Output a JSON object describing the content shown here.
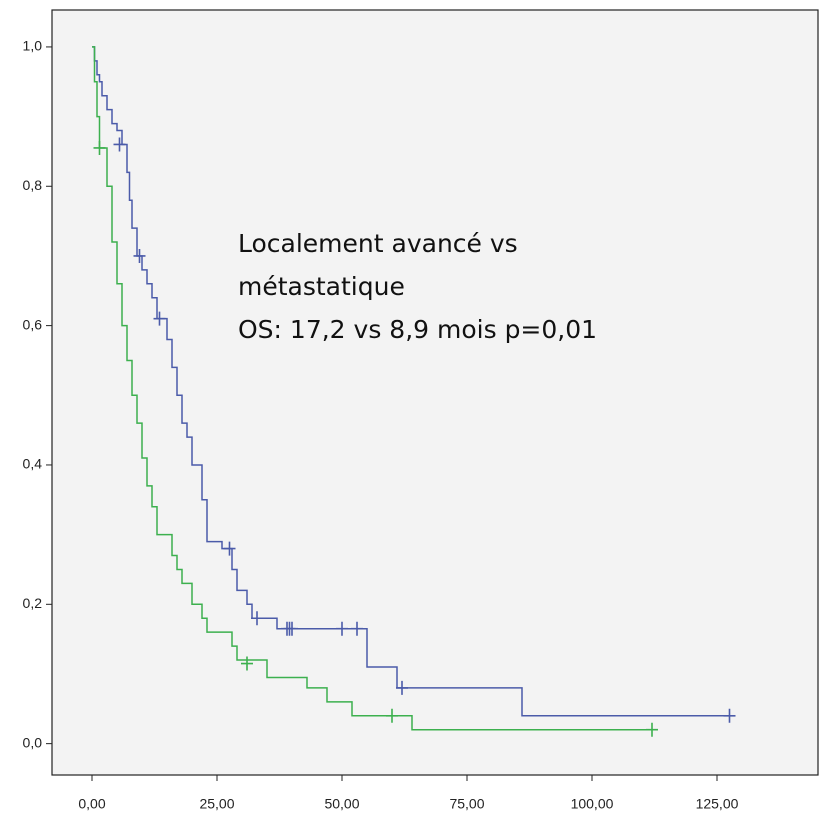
{
  "chart_data": {
    "type": "step",
    "annotation": [
      "Localement avancé vs",
      "métastatique",
      "OS: 17,2 vs 8,9 mois  p=0,01"
    ],
    "xlim": [
      -8,
      145.2
    ],
    "ylim": [
      -0.045,
      1.053
    ],
    "xticks": [
      {
        "value": 0,
        "label": "0,00"
      },
      {
        "value": 25,
        "label": "25,00"
      },
      {
        "value": 50,
        "label": "50,00"
      },
      {
        "value": 75,
        "label": "75,00"
      },
      {
        "value": 100,
        "label": "100,00"
      },
      {
        "value": 125,
        "label": "125,00"
      }
    ],
    "yticks": [
      {
        "value": 0,
        "label": "0,0"
      },
      {
        "value": 0.2,
        "label": "0,2"
      },
      {
        "value": 0.4,
        "label": "0,4"
      },
      {
        "value": 0.6,
        "label": "0,6"
      },
      {
        "value": 0.8,
        "label": "0,8"
      },
      {
        "value": 1.0,
        "label": "1,0"
      }
    ],
    "series": [
      {
        "color": "#4b5ba9",
        "x": [
          0,
          0.5,
          1,
          1.5,
          2,
          3,
          4,
          5,
          6,
          7,
          7.5,
          8,
          9,
          10,
          11,
          12,
          13,
          15,
          16,
          17,
          18,
          19,
          20,
          22,
          23,
          26,
          28,
          29,
          31,
          32,
          37,
          55,
          61,
          86,
          127.5
        ],
        "values": [
          1.0,
          0.98,
          0.96,
          0.95,
          0.93,
          0.91,
          0.89,
          0.88,
          0.86,
          0.82,
          0.78,
          0.74,
          0.7,
          0.68,
          0.66,
          0.64,
          0.61,
          0.58,
          0.54,
          0.5,
          0.46,
          0.44,
          0.4,
          0.35,
          0.29,
          0.28,
          0.25,
          0.22,
          0.2,
          0.18,
          0.165,
          0.11,
          0.08,
          0.04,
          0.04
        ],
        "censored": {
          "x": [
            5.5,
            9.5,
            13.5,
            27.5,
            33,
            39,
            39.5,
            40,
            50,
            53,
            62,
            127.5
          ],
          "y": [
            0.86,
            0.7,
            0.61,
            0.28,
            0.18,
            0.165,
            0.165,
            0.165,
            0.165,
            0.165,
            0.08,
            0.04
          ]
        }
      },
      {
        "color": "#3cb04e",
        "x": [
          0,
          0.5,
          1,
          1.5,
          3,
          4,
          5,
          6,
          7,
          8,
          9,
          10,
          11,
          12,
          13,
          16,
          17,
          18,
          20,
          22,
          23,
          28,
          29,
          35,
          43,
          47,
          52,
          64,
          112
        ],
        "values": [
          1.0,
          0.95,
          0.9,
          0.855,
          0.8,
          0.72,
          0.66,
          0.6,
          0.55,
          0.5,
          0.46,
          0.41,
          0.37,
          0.34,
          0.3,
          0.27,
          0.25,
          0.23,
          0.2,
          0.18,
          0.16,
          0.14,
          0.12,
          0.095,
          0.08,
          0.06,
          0.04,
          0.02,
          0.02
        ],
        "censored": {
          "x": [
            1.5,
            31,
            60,
            112
          ],
          "y": [
            0.855,
            0.115,
            0.04,
            0.02
          ]
        }
      }
    ]
  }
}
